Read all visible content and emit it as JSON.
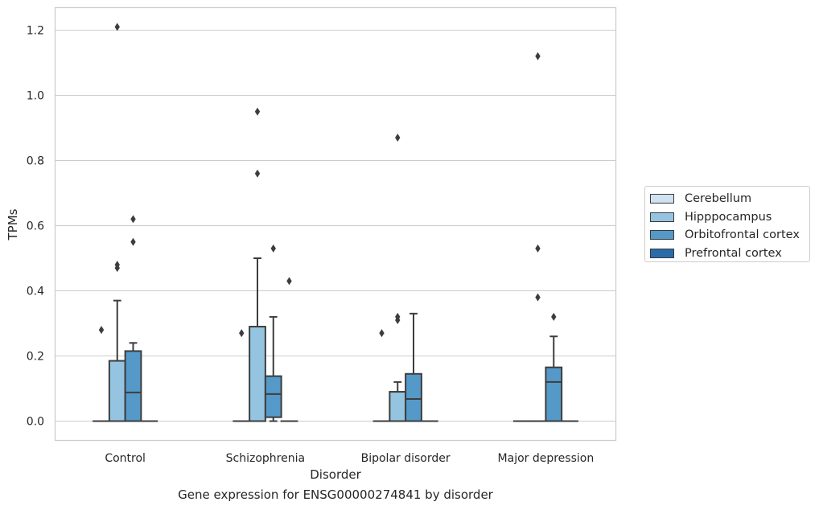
{
  "chart_data": {
    "type": "box",
    "xlabel": "Disorder",
    "ylabel": "TPMs",
    "ylim": [
      -0.06,
      1.27
    ],
    "yticks": [
      0.0,
      0.2,
      0.4,
      0.6,
      0.8,
      1.0,
      1.2
    ],
    "ytick_labels": [
      "0.0",
      "0.2",
      "0.4",
      "0.6",
      "0.8",
      "1.0",
      "1.2"
    ],
    "categories": [
      "Control",
      "Schizophrenia",
      "Bipolar disorder",
      "Major depression"
    ],
    "grid": true,
    "legend_position": "right",
    "series": [
      {
        "name": "Cerebellum",
        "color": "#d0e1f2",
        "boxes": [
          {
            "q1": 0,
            "median": 0,
            "q3": 0,
            "whislo": 0,
            "whishi": 0,
            "fliers": [
              0.28
            ]
          },
          {
            "q1": 0,
            "median": 0,
            "q3": 0,
            "whislo": 0,
            "whishi": 0,
            "fliers": [
              0.27
            ]
          },
          {
            "q1": 0,
            "median": 0,
            "q3": 0,
            "whislo": 0,
            "whishi": 0,
            "fliers": [
              0.27
            ]
          },
          {
            "q1": 0,
            "median": 0,
            "q3": 0,
            "whislo": 0,
            "whishi": 0,
            "fliers": []
          }
        ]
      },
      {
        "name": "Hipppocampus",
        "color": "#94c4df",
        "boxes": [
          {
            "q1": 0,
            "median": 0,
            "q3": 0.185,
            "whislo": 0,
            "whishi": 0.37,
            "fliers": [
              0.47,
              0.48,
              1.21
            ]
          },
          {
            "q1": 0,
            "median": 0,
            "q3": 0.29,
            "whislo": 0,
            "whishi": 0.5,
            "fliers": [
              0.76,
              0.95
            ]
          },
          {
            "q1": 0,
            "median": 0,
            "q3": 0.09,
            "whislo": 0,
            "whishi": 0.12,
            "fliers": [
              0.31,
              0.32,
              0.87
            ]
          },
          {
            "q1": 0,
            "median": 0,
            "q3": 0,
            "whislo": 0,
            "whishi": 0,
            "fliers": [
              0.38,
              0.53,
              1.12
            ]
          }
        ]
      },
      {
        "name": "Orbitofrontal cortex",
        "color": "#5599c8",
        "boxes": [
          {
            "q1": 0,
            "median": 0.088,
            "q3": 0.215,
            "whislo": 0,
            "whishi": 0.24,
            "fliers": [
              0.55,
              0.62
            ]
          },
          {
            "q1": 0.012,
            "median": 0.083,
            "q3": 0.138,
            "whislo": 0,
            "whishi": 0.32,
            "fliers": [
              0.53
            ]
          },
          {
            "q1": 0,
            "median": 0.068,
            "q3": 0.145,
            "whislo": 0,
            "whishi": 0.33,
            "fliers": []
          },
          {
            "q1": 0,
            "median": 0.12,
            "q3": 0.165,
            "whislo": 0,
            "whishi": 0.26,
            "fliers": [
              0.32
            ]
          }
        ]
      },
      {
        "name": "Prefrontal cortex",
        "color": "#2b6ca8",
        "boxes": [
          {
            "q1": 0,
            "median": 0,
            "q3": 0,
            "whislo": 0,
            "whishi": 0,
            "fliers": []
          },
          {
            "q1": 0,
            "median": 0,
            "q3": 0,
            "whislo": 0,
            "whishi": 0,
            "fliers": [
              0.43
            ]
          },
          {
            "q1": 0,
            "median": 0,
            "q3": 0,
            "whislo": 0,
            "whishi": 0,
            "fliers": []
          },
          {
            "q1": 0,
            "median": 0,
            "q3": 0,
            "whislo": 0,
            "whishi": 0,
            "fliers": []
          }
        ]
      }
    ]
  },
  "caption": "Gene expression for ENSG00000274841 by disorder"
}
